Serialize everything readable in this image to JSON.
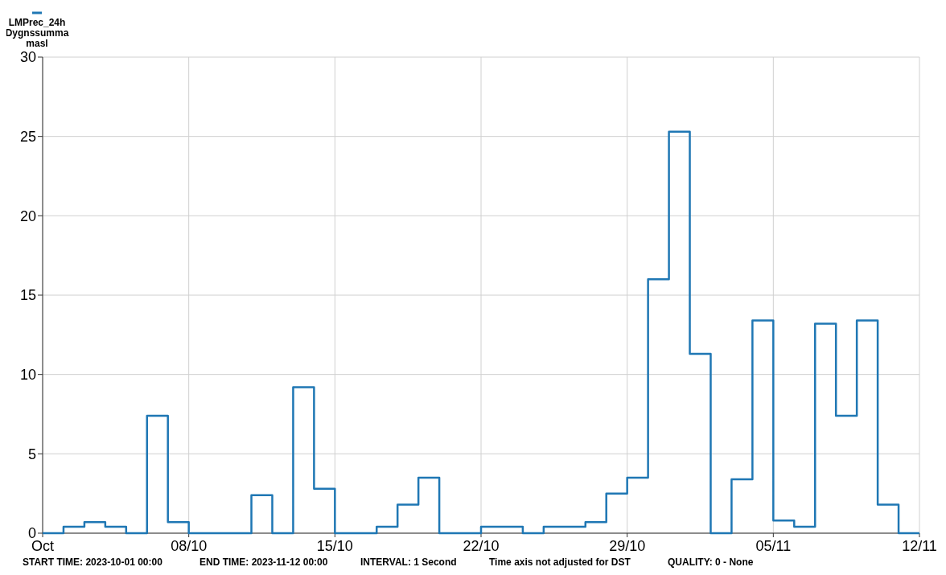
{
  "chart_data": {
    "type": "step",
    "x": [
      "2023-10-01",
      "2023-10-02",
      "2023-10-03",
      "2023-10-04",
      "2023-10-05",
      "2023-10-06",
      "2023-10-07",
      "2023-10-08",
      "2023-10-09",
      "2023-10-10",
      "2023-10-11",
      "2023-10-12",
      "2023-10-13",
      "2023-10-14",
      "2023-10-15",
      "2023-10-16",
      "2023-10-17",
      "2023-10-18",
      "2023-10-19",
      "2023-10-20",
      "2023-10-21",
      "2023-10-22",
      "2023-10-23",
      "2023-10-24",
      "2023-10-25",
      "2023-10-26",
      "2023-10-27",
      "2023-10-28",
      "2023-10-29",
      "2023-10-30",
      "2023-10-31",
      "2023-11-01",
      "2023-11-02",
      "2023-11-03",
      "2023-11-04",
      "2023-11-05",
      "2023-11-06",
      "2023-11-07",
      "2023-11-08",
      "2023-11-09",
      "2023-11-10",
      "2023-11-11",
      "2023-11-12"
    ],
    "series": [
      {
        "name": "LMPrec_24h Dygnssumma masl",
        "color": "#1f77b4",
        "values": [
          0,
          0.4,
          0.7,
          0.4,
          0,
          7.4,
          0.7,
          0,
          0,
          0,
          2.4,
          0,
          9.2,
          2.8,
          0,
          0,
          0.4,
          1.8,
          3.5,
          0,
          0,
          0.4,
          0.4,
          0,
          0.4,
          0.4,
          0.7,
          2.5,
          3.5,
          16.0,
          25.3,
          11.3,
          0,
          3.4,
          13.4,
          0.8,
          0.4,
          13.2,
          7.4,
          13.4,
          1.8,
          0,
          0
        ]
      }
    ],
    "xlim": [
      "2023-10-01",
      "2023-11-12"
    ],
    "xticks": [
      {
        "value": "2023-10-01",
        "label": "Oct"
      },
      {
        "value": "2023-10-08",
        "label": "08/10"
      },
      {
        "value": "2023-10-15",
        "label": "15/10"
      },
      {
        "value": "2023-10-22",
        "label": "22/10"
      },
      {
        "value": "2023-10-29",
        "label": "29/10"
      },
      {
        "value": "2023-11-05",
        "label": "05/11"
      },
      {
        "value": "2023-11-12",
        "label": "12/11"
      }
    ],
    "ylim": [
      0,
      30
    ],
    "yticks": [
      0,
      5,
      10,
      15,
      20,
      25,
      30
    ],
    "grid": true,
    "legend": "top left",
    "line_style": "solid",
    "annotations": [
      "START TIME: 2023-10-01 00:00",
      "END TIME: 2023-11-12 00:00",
      "INTERVAL: 1 Second",
      "Time axis not adjusted for DST",
      "QUALITY: 0 - None"
    ]
  }
}
